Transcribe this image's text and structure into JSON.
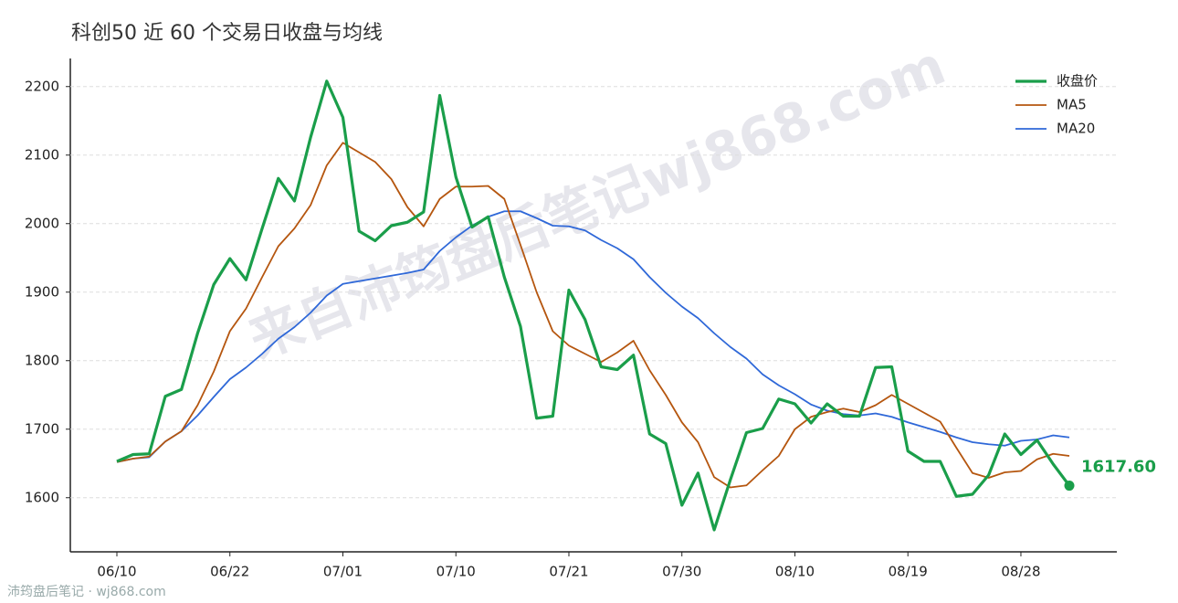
{
  "chart_data": {
    "type": "line",
    "title": "科创50 近 60 个交易日收盘与均线",
    "watermark": "来自沛筠盘后笔记wj868.com",
    "footer": "沛筠盘后笔记 · wj868.com",
    "categories": [
      "06/10",
      null,
      null,
      null,
      null,
      null,
      null,
      "06/22",
      null,
      null,
      null,
      null,
      null,
      null,
      "07/01",
      null,
      null,
      null,
      null,
      null,
      null,
      "07/10",
      null,
      null,
      null,
      null,
      null,
      null,
      "07/21",
      null,
      null,
      null,
      null,
      null,
      null,
      "07/30",
      null,
      null,
      null,
      null,
      null,
      null,
      "08/10",
      null,
      null,
      null,
      null,
      null,
      null,
      "08/19",
      null,
      null,
      null,
      null,
      null,
      null,
      "08/28",
      null,
      null,
      null
    ],
    "series": [
      {
        "name": "收盘价",
        "color": "#1a9e4a",
        "width": 3.2,
        "values": [
          1653,
          1663,
          1664,
          1748,
          1758,
          1840,
          1911,
          1949,
          1918,
          1993,
          2066,
          2033,
          2126,
          2208,
          2155,
          1989,
          1975,
          1997,
          2002,
          2017,
          2187,
          2068,
          1995,
          2010,
          1922,
          1850,
          1716,
          1719,
          1903,
          1860,
          1791,
          1787,
          1808,
          1693,
          1679,
          1589,
          1636,
          1553,
          1626,
          1695,
          1701,
          1744,
          1737,
          1709,
          1737,
          1719,
          1719,
          1790,
          1791,
          1668,
          1653,
          1653,
          1602,
          1605,
          1633,
          1693,
          1663,
          1684,
          1649,
          1617.6
        ],
        "value_labels": [
          null,
          null,
          null,
          null,
          null,
          null,
          null,
          null,
          null,
          null,
          null,
          null,
          null,
          null,
          null,
          null,
          null,
          null,
          null,
          null,
          null,
          null,
          null,
          null,
          null,
          null,
          null,
          null,
          null,
          null,
          null,
          null,
          null,
          null,
          null,
          null,
          null,
          null,
          null,
          null,
          null,
          null,
          null,
          null,
          null,
          null,
          null,
          null,
          null,
          null,
          null,
          null,
          null,
          null,
          null,
          null,
          null,
          null,
          null,
          "1617.60"
        ]
      },
      {
        "name": "MA5",
        "color": "#b5560f",
        "width": 1.8,
        "values": [
          1652,
          1657,
          1660,
          1682,
          1697,
          1735,
          1784,
          1843,
          1876,
          1922,
          1967,
          1993,
          2027,
          2085,
          2118,
          2104,
          2090,
          2065,
          2024,
          1996,
          2036,
          2054,
          2054,
          2055,
          2036,
          1969,
          1900,
          1843,
          1822,
          1810,
          1798,
          1812,
          1829,
          1786,
          1750,
          1710,
          1681,
          1630,
          1615,
          1618,
          1640,
          1661,
          1700,
          1718,
          1725,
          1730,
          1725,
          1735,
          1750,
          1737,
          1724,
          1711,
          1673,
          1636,
          1629,
          1637,
          1639,
          1656,
          1664,
          1661
        ]
      },
      {
        "name": "MA20",
        "color": "#2f68d8",
        "width": 1.8,
        "values": [
          1652,
          1657,
          1659,
          1682,
          1697,
          1720,
          1747,
          1773,
          1790,
          1810,
          1832,
          1849,
          1870,
          1895,
          1912,
          1916,
          1920,
          1924,
          1928,
          1933,
          1960,
          1980,
          1997,
          2010,
          2018,
          2018,
          2008,
          1997,
          1996,
          1990,
          1976,
          1964,
          1948,
          1922,
          1899,
          1879,
          1862,
          1840,
          1820,
          1803,
          1780,
          1764,
          1751,
          1736,
          1727,
          1722,
          1720,
          1723,
          1718,
          1710,
          1703,
          1696,
          1688,
          1681,
          1678,
          1676,
          1683,
          1685,
          1691,
          1688
        ]
      }
    ],
    "ylim": [
      1521,
      2241
    ],
    "yticks": [
      1600,
      1700,
      1800,
      1900,
      2000,
      2100,
      2200
    ],
    "grid": true,
    "legend": "top-right"
  }
}
